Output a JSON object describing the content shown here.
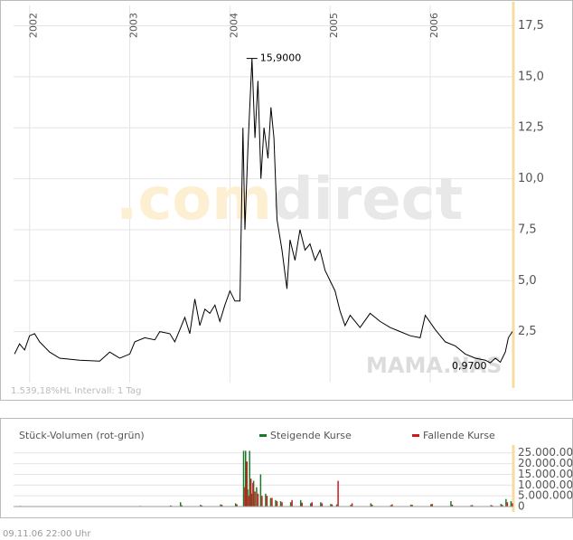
{
  "chart_data": [
    {
      "type": "line",
      "x": [
        2001.85,
        2001.9,
        2001.95,
        2002.0,
        2002.05,
        2002.1,
        2002.2,
        2002.3,
        2002.5,
        2002.7,
        2002.8,
        2002.9,
        2003.0,
        2003.05,
        2003.15,
        2003.25,
        2003.3,
        2003.4,
        2003.45,
        2003.5,
        2003.55,
        2003.6,
        2003.65,
        2003.7,
        2003.75,
        2003.8,
        2003.85,
        2003.9,
        2003.95,
        2004.0,
        2004.05,
        2004.1,
        2004.13,
        2004.15,
        2004.18,
        2004.22,
        2004.25,
        2004.28,
        2004.31,
        2004.34,
        2004.38,
        2004.41,
        2004.44,
        2004.47,
        2004.52,
        2004.57,
        2004.6,
        2004.65,
        2004.7,
        2004.75,
        2004.8,
        2004.85,
        2004.9,
        2004.95,
        2005.05,
        2005.1,
        2005.15,
        2005.2,
        2005.3,
        2005.4,
        2005.5,
        2005.6,
        2005.7,
        2005.8,
        2005.9,
        2005.95,
        2006.05,
        2006.15,
        2006.25,
        2006.35,
        2006.45,
        2006.55,
        2006.6,
        2006.65,
        2006.7,
        2006.75,
        2006.78,
        2006.82
      ],
      "values": [
        1.4,
        1.9,
        1.6,
        2.3,
        2.4,
        2.0,
        1.5,
        1.2,
        1.1,
        1.05,
        1.5,
        1.2,
        1.4,
        2.0,
        2.2,
        2.1,
        2.5,
        2.4,
        2.0,
        2.6,
        3.2,
        2.4,
        4.1,
        2.8,
        3.6,
        3.4,
        3.8,
        3.0,
        3.8,
        4.5,
        4.0,
        4.0,
        12.5,
        7.5,
        11.5,
        15.9,
        12.0,
        14.8,
        10.0,
        12.5,
        11.0,
        13.5,
        12.0,
        8.0,
        6.5,
        4.6,
        7.0,
        6.0,
        7.5,
        6.5,
        6.8,
        6.0,
        6.5,
        5.5,
        4.5,
        3.5,
        2.8,
        3.3,
        2.7,
        3.4,
        3.0,
        2.7,
        2.5,
        2.3,
        2.2,
        3.3,
        2.6,
        2.0,
        1.8,
        1.4,
        1.2,
        1.1,
        0.97,
        1.2,
        1.0,
        1.5,
        2.2,
        2.5
      ],
      "color": "#000000",
      "xlim": [
        2001.84,
        2006.83
      ],
      "xticks": [
        2002,
        2003,
        2004,
        2005,
        2006
      ],
      "ylim": [
        0,
        18.5
      ],
      "yticks": [
        {
          "value": 2.5,
          "label": "2,5"
        },
        {
          "value": 5,
          "label": "5,0"
        },
        {
          "value": 7.5,
          "label": "7,5"
        },
        {
          "value": 10,
          "label": "10,0"
        },
        {
          "value": 12.5,
          "label": "12,5"
        },
        {
          "value": 15,
          "label": "15,0"
        },
        {
          "value": 17.5,
          "label": "17,5"
        }
      ],
      "grid": true,
      "annotations": [
        {
          "x": 2004.22,
          "y": 15.9,
          "label": "15,9000"
        },
        {
          "x": 2006.6,
          "y": 0.97,
          "label": "0,9700"
        }
      ],
      "watermark_logo": [
        ".com",
        "direct"
      ],
      "watermark_symbol": "MAMA.NAS",
      "footnote": "1.539,18%HL  Intervall: 1 Tag"
    },
    {
      "type": "bar",
      "title": "Stück-Volumen (rot-grün)",
      "x": [
        2001.9,
        2002.2,
        2002.5,
        2002.8,
        2003.1,
        2003.4,
        2003.5,
        2003.7,
        2003.9,
        2004.05,
        2004.13,
        2004.15,
        2004.17,
        2004.19,
        2004.21,
        2004.23,
        2004.26,
        2004.3,
        2004.35,
        2004.4,
        2004.45,
        2004.5,
        2004.6,
        2004.7,
        2004.8,
        2004.9,
        2005.0,
        2005.06,
        2005.2,
        2005.4,
        2005.6,
        2005.8,
        2006.0,
        2006.2,
        2006.4,
        2006.6,
        2006.7,
        2006.75,
        2006.8
      ],
      "series": [
        {
          "name": "Steigende Kurse",
          "color": "#1a7a2a",
          "values": [
            300000,
            200000,
            150000,
            200000,
            300000,
            500000,
            2000000,
            800000,
            1000000,
            1500000,
            26000000,
            26000000,
            8000000,
            26000000,
            6000000,
            12000000,
            9000000,
            15000000,
            6000000,
            4000000,
            3000000,
            2500000,
            2000000,
            3000000,
            1500000,
            2000000,
            1200000,
            1000000,
            800000,
            1500000,
            700000,
            900000,
            1000000,
            2500000,
            600000,
            700000,
            1200000,
            3500000,
            2500000
          ]
        },
        {
          "name": "Fallende Kurse",
          "color": "#cc1a1a",
          "values": [
            200000,
            150000,
            100000,
            150000,
            200000,
            300000,
            600000,
            500000,
            800000,
            1000000,
            9000000,
            21000000,
            5000000,
            13000000,
            11000000,
            7000000,
            6000000,
            5000000,
            5000000,
            4000000,
            2500000,
            2000000,
            3000000,
            1800000,
            2000000,
            1500000,
            1000000,
            12000000,
            1500000,
            900000,
            1000000,
            800000,
            1200000,
            900000,
            700000,
            500000,
            800000,
            2000000,
            1500000
          ]
        }
      ],
      "xlim": [
        2001.84,
        2006.83
      ],
      "ylim": [
        0,
        27000000
      ],
      "yticks": [
        0,
        {
          "value": 5000000,
          "label": "5.000.000"
        },
        {
          "value": 10000000,
          "label": "10.000.000"
        },
        {
          "value": 15000000,
          "label": "15.000.000"
        },
        {
          "value": 20000000,
          "label": "20.000.000"
        },
        {
          "value": 25000000,
          "label": "25.000.000"
        }
      ],
      "grid": true
    }
  ],
  "footer": {
    "timestamp": "09.11.06   22:00 Uhr"
  }
}
